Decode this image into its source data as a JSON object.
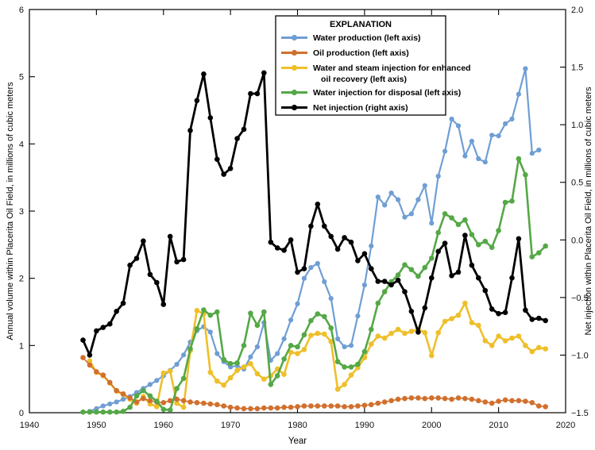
{
  "figure_title": "",
  "chart_data": {
    "type": "line",
    "title": "",
    "xlabel": "Year",
    "ylabel_left": "Annual volume within Placerita Oil Field, in millions of cubic meters",
    "ylabel_right": "Net injection within Placerita Oil Field, in millions of cubic meters",
    "grid": false,
    "legend_position": "top-center-inside",
    "legend_title": "EXPLANATION",
    "x_axis": {
      "min": 1940,
      "max": 2020,
      "ticks": [
        1940,
        1950,
        1960,
        1970,
        1980,
        1990,
        2000,
        2010,
        2020
      ],
      "tick_labels": [
        "1940",
        "1950",
        "1960",
        "1970",
        "1980",
        "1990",
        "2000",
        "2010",
        "2020"
      ]
    },
    "y_left": {
      "min": 0,
      "max": 6,
      "ticks": [
        0,
        1,
        2,
        3,
        4,
        5,
        6
      ],
      "tick_labels": [
        "0",
        "1",
        "2",
        "3",
        "4",
        "5",
        "6"
      ]
    },
    "y_right": {
      "min": -1.5,
      "max": 2.0,
      "ticks": [
        -1.5,
        -1.0,
        -0.5,
        0.0,
        0.5,
        1.0,
        1.5,
        2.0
      ],
      "tick_labels": [
        "−1.5",
        "−1.0",
        "−0.5",
        "0.0",
        "0.5",
        "1.0",
        "1.5",
        "2.0"
      ]
    },
    "render_order": [
      "water-production",
      "steam-injection",
      "oil-production",
      "disposal-injection",
      "net-injection"
    ],
    "series": [
      {
        "id": "water-production",
        "name": "Water production (left axis)",
        "legend_lines": [
          "Water production (left axis)"
        ],
        "axis": "left",
        "color": "#6f9ed4",
        "line_width": 2.2,
        "marker_radius": 3.1,
        "start_year": 1949,
        "values": [
          0.02,
          0.06,
          0.1,
          0.13,
          0.16,
          0.2,
          0.24,
          0.3,
          0.36,
          0.42,
          0.48,
          0.55,
          0.63,
          0.72,
          0.86,
          1.05,
          1.22,
          1.28,
          1.2,
          0.88,
          0.76,
          0.68,
          0.7,
          0.65,
          0.83,
          0.98,
          1.34,
          0.78,
          0.88,
          1.1,
          1.38,
          1.62,
          2.0,
          2.16,
          2.22,
          1.95,
          1.7,
          1.1,
          0.98,
          1.0,
          1.44,
          1.9,
          2.48,
          3.21,
          3.09,
          3.27,
          3.17,
          2.91,
          2.96,
          3.17,
          3.38,
          2.82,
          3.52,
          3.89,
          4.37,
          4.27,
          3.82,
          4.04,
          3.78,
          3.73,
          4.13,
          4.12,
          4.3,
          4.37,
          4.74,
          5.12,
          3.86,
          3.91
        ]
      },
      {
        "id": "oil-production",
        "name": "Oil production (left axis)",
        "legend_lines": [
          "Oil production (left axis)"
        ],
        "axis": "left",
        "color": "#d1702e",
        "line_width": 1.6,
        "marker_radius": 3.3,
        "start_year": 1948,
        "values": [
          0.82,
          0.71,
          0.61,
          0.56,
          0.45,
          0.33,
          0.28,
          0.22,
          0.16,
          0.21,
          0.18,
          0.16,
          0.15,
          0.18,
          0.2,
          0.18,
          0.16,
          0.15,
          0.14,
          0.13,
          0.12,
          0.1,
          0.08,
          0.07,
          0.06,
          0.06,
          0.06,
          0.07,
          0.07,
          0.07,
          0.08,
          0.08,
          0.09,
          0.1,
          0.1,
          0.1,
          0.1,
          0.1,
          0.1,
          0.09,
          0.09,
          0.1,
          0.11,
          0.12,
          0.14,
          0.16,
          0.18,
          0.2,
          0.21,
          0.22,
          0.22,
          0.21,
          0.22,
          0.22,
          0.21,
          0.2,
          0.22,
          0.21,
          0.2,
          0.18,
          0.16,
          0.14,
          0.17,
          0.19,
          0.18,
          0.18,
          0.17,
          0.15,
          0.1,
          0.09
        ]
      },
      {
        "id": "steam-injection",
        "name": "Water and steam injection for enhanced oil recovery (left axis)",
        "legend_lines": [
          "Water and steam injection for enhanced",
          "oil recovery (left axis)"
        ],
        "axis": "left",
        "color": "#efbf2a",
        "line_width": 2.6,
        "marker_radius": 3.3,
        "start_year": 1949,
        "values": [
          0.77,
          0.6,
          0.55,
          0.44,
          0.32,
          0.27,
          0.2,
          0.14,
          0.24,
          0.13,
          0.09,
          0.59,
          0.62,
          0.14,
          0.08,
          0.92,
          1.52,
          1.47,
          0.6,
          0.47,
          0.41,
          0.52,
          0.63,
          0.68,
          0.73,
          0.58,
          0.5,
          0.55,
          0.65,
          0.57,
          0.9,
          0.88,
          0.94,
          1.15,
          1.18,
          1.17,
          1.06,
          0.35,
          0.42,
          0.56,
          0.67,
          0.82,
          1.02,
          1.14,
          1.11,
          1.18,
          1.24,
          1.18,
          1.21,
          1.24,
          1.19,
          0.85,
          1.19,
          1.36,
          1.4,
          1.45,
          1.63,
          1.34,
          1.3,
          1.07,
          1.0,
          1.14,
          1.07,
          1.11,
          1.14,
          1.0,
          0.91,
          0.97,
          0.95
        ]
      },
      {
        "id": "disposal-injection",
        "name": "Water injection for disposal (left axis)",
        "legend_lines": [
          "Water injection for disposal (left axis)"
        ],
        "axis": "left",
        "color": "#55a846",
        "line_width": 2.6,
        "marker_radius": 3.3,
        "start_year": 1948,
        "values": [
          0.01,
          0.01,
          0.01,
          0.01,
          0.01,
          0.01,
          0.02,
          0.08,
          0.25,
          0.33,
          0.25,
          0.17,
          0.05,
          0.04,
          0.36,
          0.51,
          0.95,
          1.25,
          1.53,
          1.45,
          1.5,
          0.79,
          0.73,
          0.74,
          1.0,
          1.48,
          1.3,
          1.5,
          0.42,
          0.55,
          0.8,
          1.0,
          0.98,
          1.16,
          1.37,
          1.47,
          1.43,
          1.26,
          0.76,
          0.68,
          0.68,
          0.72,
          0.91,
          1.24,
          1.63,
          1.8,
          1.95,
          2.05,
          2.2,
          2.13,
          2.03,
          2.16,
          2.3,
          2.68,
          2.96,
          2.9,
          2.8,
          2.87,
          2.65,
          2.5,
          2.55,
          2.46,
          2.71,
          3.13,
          3.15,
          3.78,
          3.54,
          2.32,
          2.38,
          2.48
        ]
      },
      {
        "id": "net-injection",
        "name": "Net injection (right axis)",
        "legend_lines": [
          "Net injection (right axis)"
        ],
        "axis": "right",
        "color": "#000000",
        "line_width": 2.8,
        "marker_radius": 3.3,
        "start_year": 1948,
        "values": [
          -0.87,
          -1.0,
          -0.79,
          -0.76,
          -0.73,
          -0.62,
          -0.55,
          -0.22,
          -0.16,
          -0.01,
          -0.3,
          -0.37,
          -0.56,
          0.03,
          -0.19,
          -0.17,
          0.95,
          1.21,
          1.44,
          1.06,
          0.7,
          0.57,
          0.62,
          0.88,
          0.96,
          1.27,
          1.27,
          1.45,
          -0.02,
          -0.07,
          -0.09,
          0.0,
          -0.28,
          -0.25,
          0.12,
          0.31,
          0.12,
          0.03,
          -0.08,
          0.02,
          -0.02,
          -0.18,
          -0.12,
          -0.25,
          -0.36,
          -0.36,
          -0.39,
          -0.35,
          -0.45,
          -0.62,
          -0.8,
          -0.59,
          -0.33,
          -0.1,
          -0.03,
          -0.31,
          -0.28,
          0.04,
          -0.22,
          -0.33,
          -0.44,
          -0.6,
          -0.64,
          -0.63,
          -0.33,
          0.01,
          -0.61,
          -0.69,
          -0.68,
          -0.7
        ]
      }
    ]
  }
}
